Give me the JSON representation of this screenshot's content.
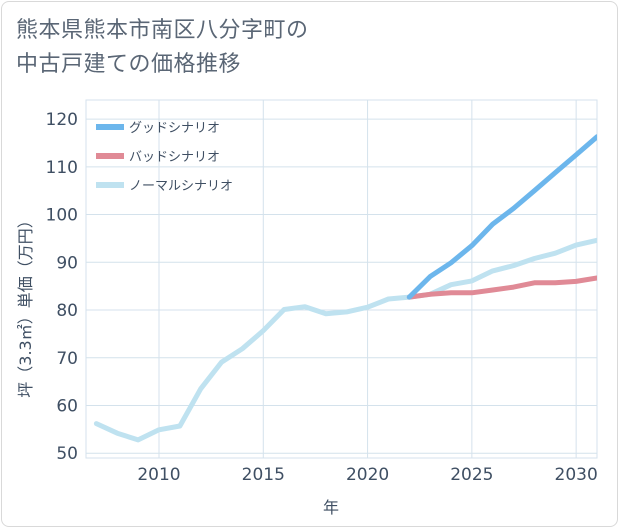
{
  "title_line1": "熊本県熊本市南区八分字町の",
  "title_line2": "中古戸建ての価格推移",
  "colors": {
    "good": "#6cb6ec",
    "bad": "#e08a96",
    "normal": "#bfe2f0",
    "grid": "#d4e2ec"
  },
  "chart_data": {
    "type": "line",
    "title": "熊本県熊本市南区八分字町の中古戸建ての価格推移",
    "xlabel": "年",
    "ylabel": "坪（3.3㎡）単価（万円）",
    "xlim": [
      2006.5,
      2031
    ],
    "ylim": [
      49,
      124
    ],
    "x_ticks": [
      "2010",
      "2015",
      "2020",
      "2025",
      "2030"
    ],
    "y_ticks": [
      "50",
      "60",
      "70",
      "80",
      "90",
      "100",
      "110",
      "120"
    ],
    "grid": true,
    "legend_position": "top-left",
    "series": [
      {
        "name": "ノーマルシナリオ",
        "color_key": "normal",
        "x": [
          2007,
          2008,
          2009,
          2010,
          2011,
          2012,
          2013,
          2014,
          2015,
          2016,
          2017,
          2018,
          2019,
          2020,
          2021,
          2022,
          2023,
          2024,
          2025,
          2026,
          2027,
          2028,
          2029,
          2030,
          2031
        ],
        "values": [
          56.2,
          54.2,
          52.8,
          54.9,
          55.7,
          63.5,
          69.1,
          71.9,
          75.7,
          80.1,
          80.7,
          79.2,
          79.6,
          80.6,
          82.3,
          82.7,
          83.3,
          85.3,
          86.1,
          88.2,
          89.3,
          90.8,
          91.9,
          93.6,
          94.6
        ]
      },
      {
        "name": "バッドシナリオ",
        "color_key": "bad",
        "x": [
          2022,
          2023,
          2024,
          2025,
          2026,
          2027,
          2028,
          2029,
          2030,
          2031
        ],
        "values": [
          82.7,
          83.3,
          83.6,
          83.6,
          84.2,
          84.8,
          85.7,
          85.7,
          86.0,
          86.7
        ]
      },
      {
        "name": "グッドシナリオ",
        "color_key": "good",
        "x": [
          2022,
          2023,
          2024,
          2025,
          2026,
          2027,
          2028,
          2029,
          2030,
          2031
        ],
        "values": [
          82.7,
          87.0,
          89.9,
          93.5,
          98.0,
          101.3,
          105.0,
          108.8,
          112.5,
          116.3
        ]
      }
    ],
    "legend": [
      "グッドシナリオ",
      "バッドシナリオ",
      "ノーマルシナリオ"
    ]
  }
}
